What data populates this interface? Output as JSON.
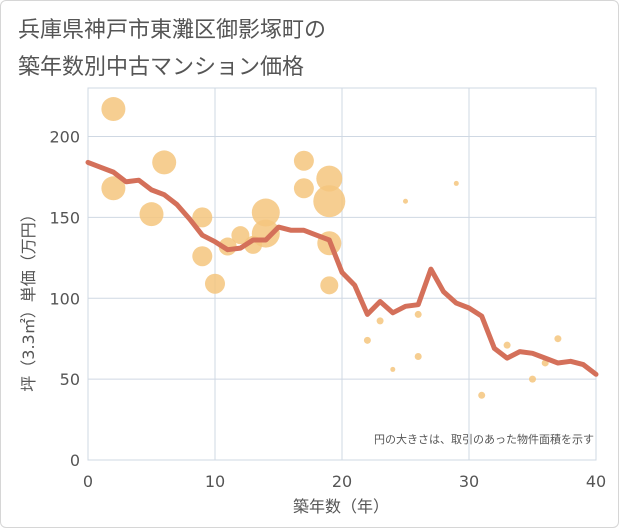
{
  "chart_data": {
    "type": "scatter",
    "title": "兵庫県神戸市東灘区御影塚町の\n築年数別中古マンション価格",
    "xlabel": "築年数（年）",
    "ylabel": "坪（3.3㎡）単価（万円）",
    "note": "円の大きさは、取引のあった物件面積を示す",
    "xlim": [
      0,
      40
    ],
    "ylim": [
      0,
      230
    ],
    "x_ticks": [
      0,
      10,
      20,
      30,
      40
    ],
    "y_ticks": [
      0,
      50,
      100,
      150,
      200
    ],
    "x_tick_labels": [
      "0",
      "10",
      "20",
      "30",
      "40"
    ],
    "y_tick_labels": [
      "0",
      "50",
      "100",
      "150",
      "200"
    ],
    "grid": true,
    "bubble_color": "#f5c57e",
    "line_color": "#d4705a",
    "points": [
      {
        "x": 2,
        "y": 217,
        "r": 12
      },
      {
        "x": 2,
        "y": 168,
        "r": 12
      },
      {
        "x": 5,
        "y": 152,
        "r": 12
      },
      {
        "x": 6,
        "y": 184,
        "r": 12
      },
      {
        "x": 9,
        "y": 150,
        "r": 10
      },
      {
        "x": 9,
        "y": 126,
        "r": 10
      },
      {
        "x": 10,
        "y": 109,
        "r": 10
      },
      {
        "x": 11,
        "y": 132,
        "r": 9
      },
      {
        "x": 12,
        "y": 139,
        "r": 9
      },
      {
        "x": 13,
        "y": 133,
        "r": 9
      },
      {
        "x": 14,
        "y": 153,
        "r": 14
      },
      {
        "x": 14,
        "y": 140,
        "r": 14
      },
      {
        "x": 17,
        "y": 185,
        "r": 10
      },
      {
        "x": 17,
        "y": 168,
        "r": 10
      },
      {
        "x": 19,
        "y": 174,
        "r": 13
      },
      {
        "x": 19,
        "y": 160,
        "r": 16
      },
      {
        "x": 19,
        "y": 134,
        "r": 12
      },
      {
        "x": 19,
        "y": 108,
        "r": 9
      },
      {
        "x": 22,
        "y": 74,
        "r": 3.5
      },
      {
        "x": 23,
        "y": 86,
        "r": 3.5
      },
      {
        "x": 24,
        "y": 56,
        "r": 2.5
      },
      {
        "x": 25,
        "y": 160,
        "r": 2.5
      },
      {
        "x": 26,
        "y": 90,
        "r": 3.5
      },
      {
        "x": 26,
        "y": 64,
        "r": 3.5
      },
      {
        "x": 29,
        "y": 171,
        "r": 2.5
      },
      {
        "x": 31,
        "y": 40,
        "r": 3.5
      },
      {
        "x": 33,
        "y": 71,
        "r": 3.5
      },
      {
        "x": 35,
        "y": 50,
        "r": 3.5
      },
      {
        "x": 36,
        "y": 60,
        "r": 3.5
      },
      {
        "x": 37,
        "y": 75,
        "r": 3.5
      }
    ],
    "trend": {
      "x": [
        0,
        1,
        2,
        3,
        4,
        5,
        6,
        7,
        8,
        9,
        10,
        11,
        12,
        13,
        14,
        15,
        16,
        17,
        18,
        19,
        20,
        21,
        22,
        23,
        24,
        25,
        26,
        27,
        28,
        29,
        30,
        31,
        32,
        33,
        34,
        35,
        36,
        37,
        38,
        39,
        40
      ],
      "y": [
        184,
        181,
        178,
        172,
        173,
        167,
        164,
        158,
        149,
        139,
        135,
        130,
        131,
        136,
        136,
        144,
        142,
        142,
        139,
        136,
        116,
        108,
        90,
        98,
        91,
        95,
        96,
        118,
        104,
        97,
        94,
        89,
        69,
        63,
        67,
        66,
        63,
        60,
        61,
        59,
        53
      ]
    }
  }
}
